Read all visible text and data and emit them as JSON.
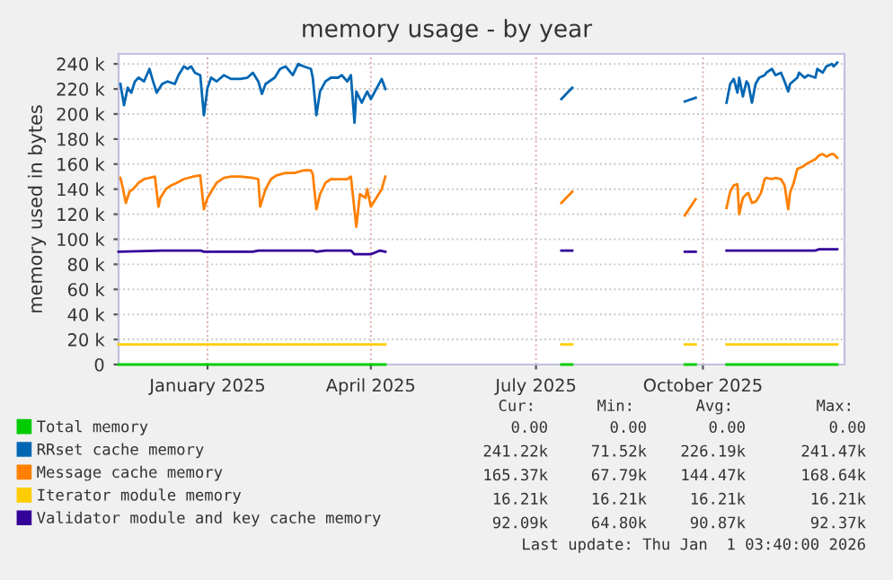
{
  "chart_data": {
    "type": "line",
    "title": "memory usage - by year",
    "ylabel": "memory used in bytes",
    "legend": "bottom",
    "grid": true,
    "xlim": [
      "2024-11-27",
      "2026-01-01"
    ],
    "xticks": [
      {
        "value": "2025-01-15",
        "label": "January 2025"
      },
      {
        "value": "2025-04-15",
        "label": "April 2025"
      },
      {
        "value": "2025-07-15",
        "label": "July 2025"
      },
      {
        "value": "2025-10-15",
        "label": "October 2025"
      }
    ],
    "ylim": [
      0,
      248000
    ],
    "yticks": [
      0,
      {
        "value": 20000,
        "label": "20 k"
      },
      {
        "value": 40000,
        "label": "40 k"
      },
      {
        "value": 60000,
        "label": "60 k"
      },
      {
        "value": 80000,
        "label": "80 k"
      },
      {
        "value": 100000,
        "label": "100 k"
      },
      {
        "value": 120000,
        "label": "120 k"
      },
      {
        "value": 140000,
        "label": "140 k"
      },
      {
        "value": 160000,
        "label": "160 k"
      },
      {
        "value": 180000,
        "label": "180 k"
      },
      {
        "value": 200000,
        "label": "200 k"
      },
      {
        "value": 220000,
        "label": "220 k"
      },
      {
        "value": 240000,
        "label": "240 k"
      }
    ],
    "series": [
      {
        "name": "Total memory",
        "color": "#00cc00",
        "x": [
          "2024-11-27",
          "2025-04-23",
          "2025-05-15",
          "2025-07-29",
          "2025-08-04",
          "2025-09-01",
          "2025-10-05",
          "2025-10-11",
          "2025-10-20",
          "2025-10-28",
          "2025-12-28"
        ],
        "values": [
          0,
          0,
          null,
          0,
          0,
          null,
          0,
          0,
          null,
          0,
          0
        ]
      },
      {
        "name": "RRset cache memory",
        "color": "#0066b3",
        "x": [
          "2024-11-28",
          "2024-11-30",
          "2024-12-02",
          "2024-12-04",
          "2024-12-06",
          "2024-12-08",
          "2024-12-11",
          "2024-12-14",
          "2024-12-16",
          "2024-12-18",
          "2024-12-21",
          "2024-12-24",
          "2024-12-28",
          "2024-12-30",
          "2025-01-02",
          "2025-01-04",
          "2025-01-06",
          "2025-01-08",
          "2025-01-11",
          "2025-01-13",
          "2025-01-15",
          "2025-01-17",
          "2025-01-20",
          "2025-01-24",
          "2025-01-28",
          "2025-02-02",
          "2025-02-06",
          "2025-02-09",
          "2025-02-12",
          "2025-02-14",
          "2025-02-16",
          "2025-02-21",
          "2025-02-24",
          "2025-02-27",
          "2025-03-03",
          "2025-03-06",
          "2025-03-09",
          "2025-03-13",
          "2025-03-14",
          "2025-03-16",
          "2025-03-18",
          "2025-03-21",
          "2025-03-24",
          "2025-03-28",
          "2025-03-30",
          "2025-04-02",
          "2025-04-04",
          "2025-04-06",
          "2025-04-07",
          "2025-04-10",
          "2025-04-13",
          "2025-04-15",
          "2025-04-18",
          "2025-04-21",
          "2025-04-23",
          "2025-05-15",
          "2025-07-29",
          "2025-08-04",
          "2025-09-01",
          "2025-10-05",
          "2025-10-11",
          "2025-10-20",
          "2025-10-28",
          "2025-10-30",
          "2025-11-01",
          "2025-11-03",
          "2025-11-04",
          "2025-11-06",
          "2025-11-08",
          "2025-11-09",
          "2025-11-11",
          "2025-11-13",
          "2025-11-15",
          "2025-11-18",
          "2025-11-19",
          "2025-11-22",
          "2025-11-24",
          "2025-11-27",
          "2025-11-29",
          "2025-12-01",
          "2025-12-02",
          "2025-12-06",
          "2025-12-07",
          "2025-12-10",
          "2025-12-12",
          "2025-12-16",
          "2025-12-17",
          "2025-12-20",
          "2025-12-22",
          "2025-12-25",
          "2025-12-26",
          "2025-12-28"
        ],
        "values": [
          224000,
          207000,
          221000,
          217000,
          226000,
          229000,
          226000,
          236000,
          226000,
          217000,
          224000,
          226000,
          224000,
          231000,
          238000,
          236000,
          238000,
          233000,
          231000,
          199000,
          221000,
          229000,
          226000,
          231000,
          228000,
          228000,
          229000,
          233000,
          226000,
          216000,
          224000,
          229000,
          236000,
          238000,
          231000,
          240000,
          238000,
          236000,
          229000,
          199000,
          218000,
          226000,
          229000,
          229000,
          231000,
          226000,
          231000,
          193000,
          218000,
          209000,
          218000,
          212000,
          220000,
          228000,
          220000,
          null,
          212000,
          221000,
          null,
          210000,
          213000,
          null,
          209000,
          224000,
          228000,
          217000,
          229000,
          214000,
          226000,
          224000,
          209000,
          224000,
          229000,
          231000,
          233000,
          236000,
          231000,
          233000,
          226000,
          218000,
          224000,
          229000,
          233000,
          229000,
          231000,
          229000,
          236000,
          233000,
          238000,
          240000,
          238000,
          241000
        ]
      },
      {
        "name": "Message cache memory",
        "color": "#ff8000",
        "x": [
          "2024-11-28",
          "2024-11-29",
          "2024-12-01",
          "2024-12-03",
          "2024-12-05",
          "2024-12-08",
          "2024-12-11",
          "2024-12-14",
          "2024-12-17",
          "2024-12-19",
          "2024-12-20",
          "2024-12-23",
          "2024-12-26",
          "2024-12-29",
          "2025-01-02",
          "2025-01-07",
          "2025-01-11",
          "2025-01-13",
          "2025-01-15",
          "2025-01-17",
          "2025-01-20",
          "2025-01-24",
          "2025-01-28",
          "2025-02-02",
          "2025-02-09",
          "2025-02-12",
          "2025-02-13",
          "2025-02-16",
          "2025-02-19",
          "2025-02-22",
          "2025-02-27",
          "2025-03-04",
          "2025-03-09",
          "2025-03-13",
          "2025-03-14",
          "2025-03-16",
          "2025-03-18",
          "2025-03-21",
          "2025-03-24",
          "2025-03-29",
          "2025-04-02",
          "2025-04-04",
          "2025-04-07",
          "2025-04-09",
          "2025-04-12",
          "2025-04-13",
          "2025-04-15",
          "2025-04-18",
          "2025-04-21",
          "2025-04-23",
          "2025-05-15",
          "2025-07-29",
          "2025-08-04",
          "2025-09-01",
          "2025-10-05",
          "2025-10-11",
          "2025-10-20",
          "2025-10-28",
          "2025-10-30",
          "2025-11-01",
          "2025-11-03",
          "2025-11-04",
          "2025-11-06",
          "2025-11-08",
          "2025-11-09",
          "2025-11-11",
          "2025-11-13",
          "2025-11-14",
          "2025-11-16",
          "2025-11-18",
          "2025-11-19",
          "2025-11-22",
          "2025-11-24",
          "2025-11-27",
          "2025-11-29",
          "2025-12-01",
          "2025-12-02",
          "2025-12-04",
          "2025-12-06",
          "2025-12-09",
          "2025-12-12",
          "2025-12-16",
          "2025-12-18",
          "2025-12-20",
          "2025-12-22",
          "2025-12-25",
          "2025-12-26",
          "2025-12-28"
        ],
        "values": [
          149000,
          143000,
          129000,
          138000,
          140000,
          145000,
          148000,
          149000,
          150000,
          126000,
          133000,
          140000,
          143000,
          145000,
          148000,
          150000,
          151000,
          124000,
          133000,
          138000,
          145000,
          149000,
          150000,
          150000,
          149000,
          148000,
          126000,
          140000,
          148000,
          151000,
          153000,
          153000,
          155000,
          155000,
          152000,
          124000,
          136000,
          145000,
          148000,
          148000,
          148000,
          150000,
          110000,
          136000,
          133000,
          140000,
          126000,
          133000,
          140000,
          150000,
          null,
          129000,
          138000,
          null,
          119000,
          132000,
          null,
          125000,
          138000,
          143000,
          144000,
          120000,
          133000,
          136000,
          137000,
          129000,
          130000,
          132000,
          137000,
          148000,
          149000,
          148000,
          149000,
          148000,
          143000,
          124000,
          137000,
          145000,
          156000,
          158000,
          161000,
          164000,
          167000,
          168000,
          166000,
          168000,
          168000,
          165000
        ]
      },
      {
        "name": "Iterator module memory",
        "color": "#ffcc00",
        "x": [
          "2024-11-27",
          "2025-04-23",
          "2025-05-15",
          "2025-07-29",
          "2025-08-04",
          "2025-09-01",
          "2025-10-05",
          "2025-10-11",
          "2025-10-20",
          "2025-10-28",
          "2025-12-28"
        ],
        "values": [
          16000,
          16000,
          null,
          16000,
          16000,
          null,
          16000,
          16000,
          null,
          16000,
          16000
        ]
      },
      {
        "name": "Validator module and key cache memory",
        "color": "#330099",
        "x": [
          "2024-11-27",
          "2024-12-21",
          "2025-01-11",
          "2025-01-13",
          "2025-01-15",
          "2025-02-09",
          "2025-02-12",
          "2025-03-14",
          "2025-03-16",
          "2025-03-21",
          "2025-04-04",
          "2025-04-06",
          "2025-04-15",
          "2025-04-20",
          "2025-04-23",
          "2025-05-15",
          "2025-07-29",
          "2025-08-04",
          "2025-09-01",
          "2025-10-05",
          "2025-10-11",
          "2025-10-20",
          "2025-10-28",
          "2025-11-29",
          "2025-12-01",
          "2025-12-16",
          "2025-12-18",
          "2025-12-28"
        ],
        "values": [
          90000,
          91000,
          91000,
          90000,
          90000,
          90000,
          91000,
          91000,
          90000,
          91000,
          91000,
          88000,
          88000,
          91000,
          90000,
          null,
          91000,
          91000,
          null,
          90000,
          90000,
          null,
          91000,
          91000,
          91000,
          91000,
          92000,
          92000
        ]
      }
    ],
    "annotations": [
      "Cur:",
      "Min:",
      "Avg:",
      "Max:",
      "0.00",
      "0.00",
      "0.00",
      "0.00",
      "241.22k",
      "71.52k",
      "226.19k",
      "241.47k",
      "165.37k",
      "67.79k",
      "144.47k",
      "168.64k",
      "16.21k",
      "16.21k",
      "16.21k",
      "16.21k",
      "92.09k",
      "64.80k",
      "90.87k",
      "92.37k",
      "Last update: Thu Jan  1 03:40:00 2026"
    ]
  }
}
